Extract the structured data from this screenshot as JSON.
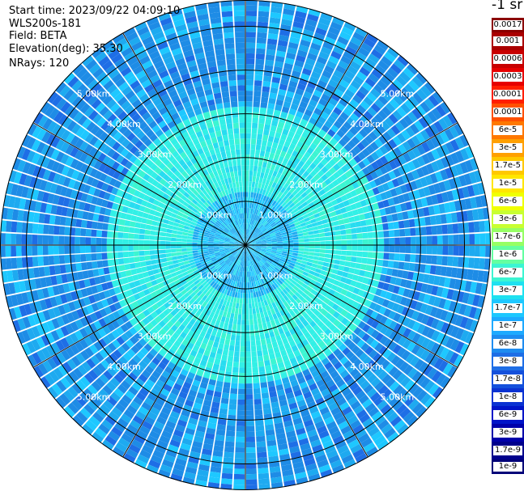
{
  "header": {
    "start_time": "Start time: 2023/09/22 04:09:10",
    "instrument": "WLS200s-181",
    "field": "Field: BETA",
    "elevation": "Elevation(deg): 35.30",
    "nrays": "NRays: 120"
  },
  "chart_data": {
    "type": "heatmap",
    "projection": "polar-ppi",
    "field": "BETA",
    "units": "-1 sr",
    "n_rays": 120,
    "elevation_deg": 35.3,
    "range_rings_km": [
      1,
      2,
      3,
      4,
      5
    ],
    "ring_labels": [
      "1.00km",
      "2.00km",
      "3.00km",
      "4.00km",
      "5.00km"
    ],
    "max_range_km": 5.6,
    "azimuth_spokes_deg": [
      0,
      30,
      60,
      90,
      120,
      150,
      180,
      210,
      240,
      270,
      300,
      330
    ],
    "colorbar": {
      "labels": [
        "0.0017",
        "0.001",
        "0.0006",
        "0.0003",
        "0.00017",
        "0.0001",
        "6e-5",
        "3e-5",
        "1.7e-5",
        "1e-5",
        "6e-6",
        "3e-6",
        "1.7e-6",
        "1e-6",
        "6e-7",
        "3e-7",
        "1.7e-7",
        "1e-7",
        "6e-8",
        "3e-8",
        "1.7e-8",
        "1e-8",
        "6e-9",
        "3e-9",
        "1.7e-9",
        "1e-9"
      ],
      "colors": [
        "#8b0000",
        "#aa0000",
        "#c80000",
        "#e60000",
        "#ff1e00",
        "#ff5000",
        "#ff7800",
        "#ffa000",
        "#ffc800",
        "#ffe600",
        "#f0ff00",
        "#c8ff32",
        "#96ff64",
        "#64ffa0",
        "#3cf5d2",
        "#1ee1f0",
        "#1ec8ff",
        "#1eaaff",
        "#1e8cf0",
        "#1e6ee6",
        "#1450dc",
        "#0a32d2",
        "#0014c8",
        "#0000aa",
        "#00008c",
        "#000078"
      ]
    },
    "colors": {
      "inner": "#1eaaf0",
      "mid": "#32f0e6",
      "outer": "#1e96e6"
    }
  }
}
